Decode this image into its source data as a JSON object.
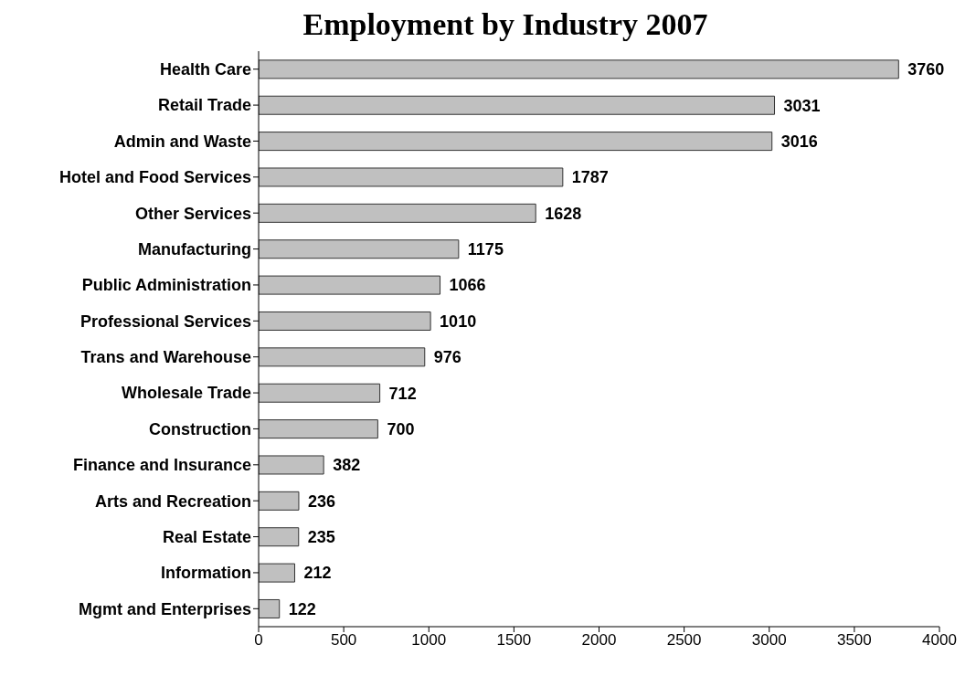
{
  "chart_data": {
    "type": "bar",
    "orientation": "horizontal",
    "title": "Employment by Industry 2007",
    "categories": [
      "Health Care",
      "Retail Trade",
      "Admin and Waste",
      "Hotel and Food Services",
      "Other Services",
      "Manufacturing",
      "Public Administration",
      "Professional Services",
      "Trans and Warehouse",
      "Wholesale Trade",
      "Construction",
      "Finance and Insurance",
      "Arts and Recreation",
      "Real Estate",
      "Information",
      "Mgmt  and Enterprises"
    ],
    "values": [
      3760,
      3031,
      3016,
      1787,
      1628,
      1175,
      1066,
      1010,
      976,
      712,
      700,
      382,
      236,
      235,
      212,
      122
    ],
    "color": "#c0c0c0",
    "xlim": [
      0,
      4000
    ],
    "xticks": [
      0,
      500,
      1000,
      1500,
      2000,
      2500,
      3000,
      3500,
      4000
    ],
    "grid": false,
    "data_labels": true,
    "legend": false
  }
}
